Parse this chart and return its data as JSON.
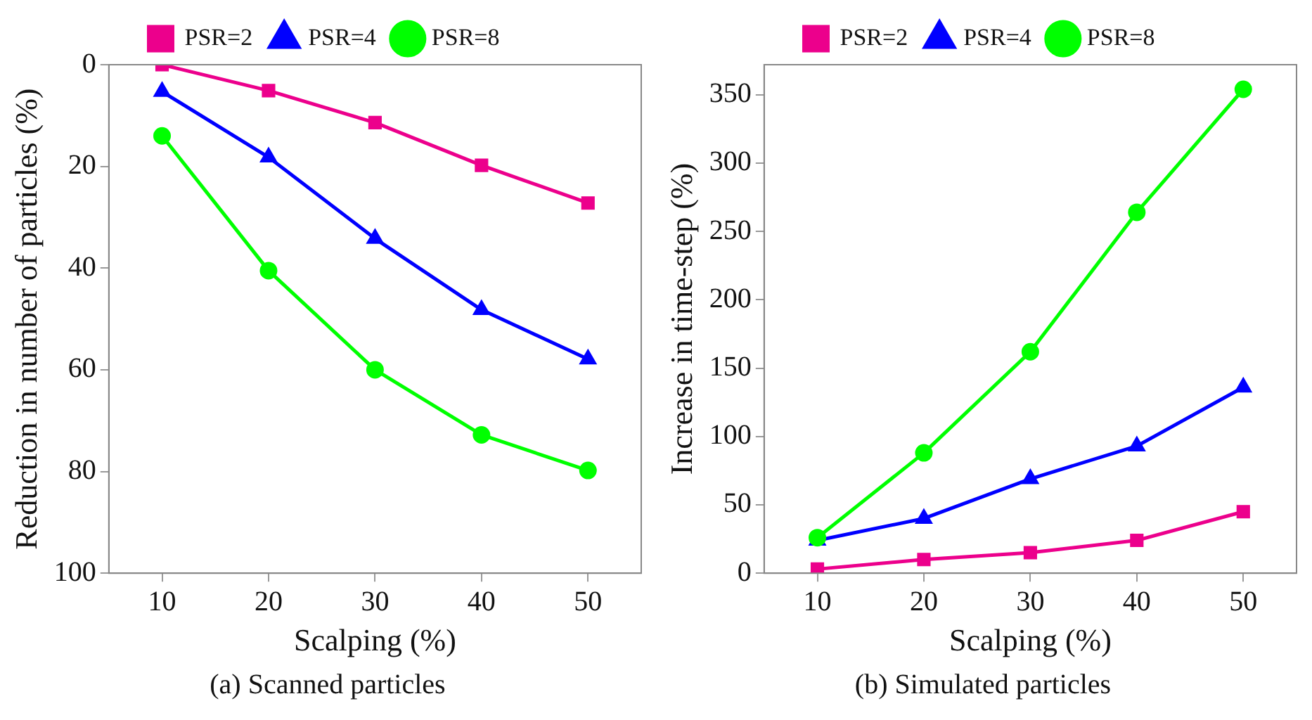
{
  "chart_data": [
    {
      "type": "line",
      "xlabel": "Scalping (%)",
      "ylabel": "Reduction in number of particles (%)",
      "x": [
        10,
        20,
        30,
        40,
        50
      ],
      "xlim": [
        5,
        55
      ],
      "xticks": [
        10,
        20,
        30,
        40,
        50
      ],
      "ylim": [
        100,
        0
      ],
      "yticks": [
        0,
        20,
        40,
        60,
        80,
        100
      ],
      "grid": false,
      "legend": "top",
      "line_style": "solid",
      "annotations": [
        "(a) Scanned particles"
      ],
      "series": [
        {
          "name": "PSR=2",
          "color": "#ec008c",
          "marker": "square",
          "values": [
            0,
            5.1,
            11.4,
            19.8,
            27.2
          ]
        },
        {
          "name": "PSR=4",
          "color": "#0000ff",
          "marker": "triangle",
          "values": [
            5.3,
            18.2,
            34.2,
            48.2,
            57.9
          ]
        },
        {
          "name": "PSR=8",
          "color": "#00ff00",
          "marker": "circle",
          "values": [
            14,
            40.5,
            60,
            72.8,
            79.8
          ]
        }
      ]
    },
    {
      "type": "line",
      "xlabel": "Scalping (%)",
      "ylabel": "Increase in time-step (%)",
      "x": [
        10,
        20,
        30,
        40,
        50
      ],
      "xlim": [
        5,
        55
      ],
      "xticks": [
        10,
        20,
        30,
        40,
        50
      ],
      "ylim": [
        0,
        372
      ],
      "yticks": [
        0,
        50,
        100,
        150,
        200,
        250,
        300,
        350
      ],
      "grid": false,
      "legend": "top",
      "line_style": "solid",
      "annotations": [
        "(b) Simulated particles"
      ],
      "series": [
        {
          "name": "PSR=2",
          "color": "#ec008c",
          "marker": "square",
          "values": [
            3,
            10,
            15,
            24,
            45
          ]
        },
        {
          "name": "PSR=4",
          "color": "#0000ff",
          "marker": "triangle",
          "values": [
            24,
            40,
            69,
            93,
            136
          ]
        },
        {
          "name": "PSR=8",
          "color": "#00ff00",
          "marker": "circle",
          "values": [
            26,
            88,
            162,
            264,
            354
          ]
        }
      ]
    }
  ]
}
